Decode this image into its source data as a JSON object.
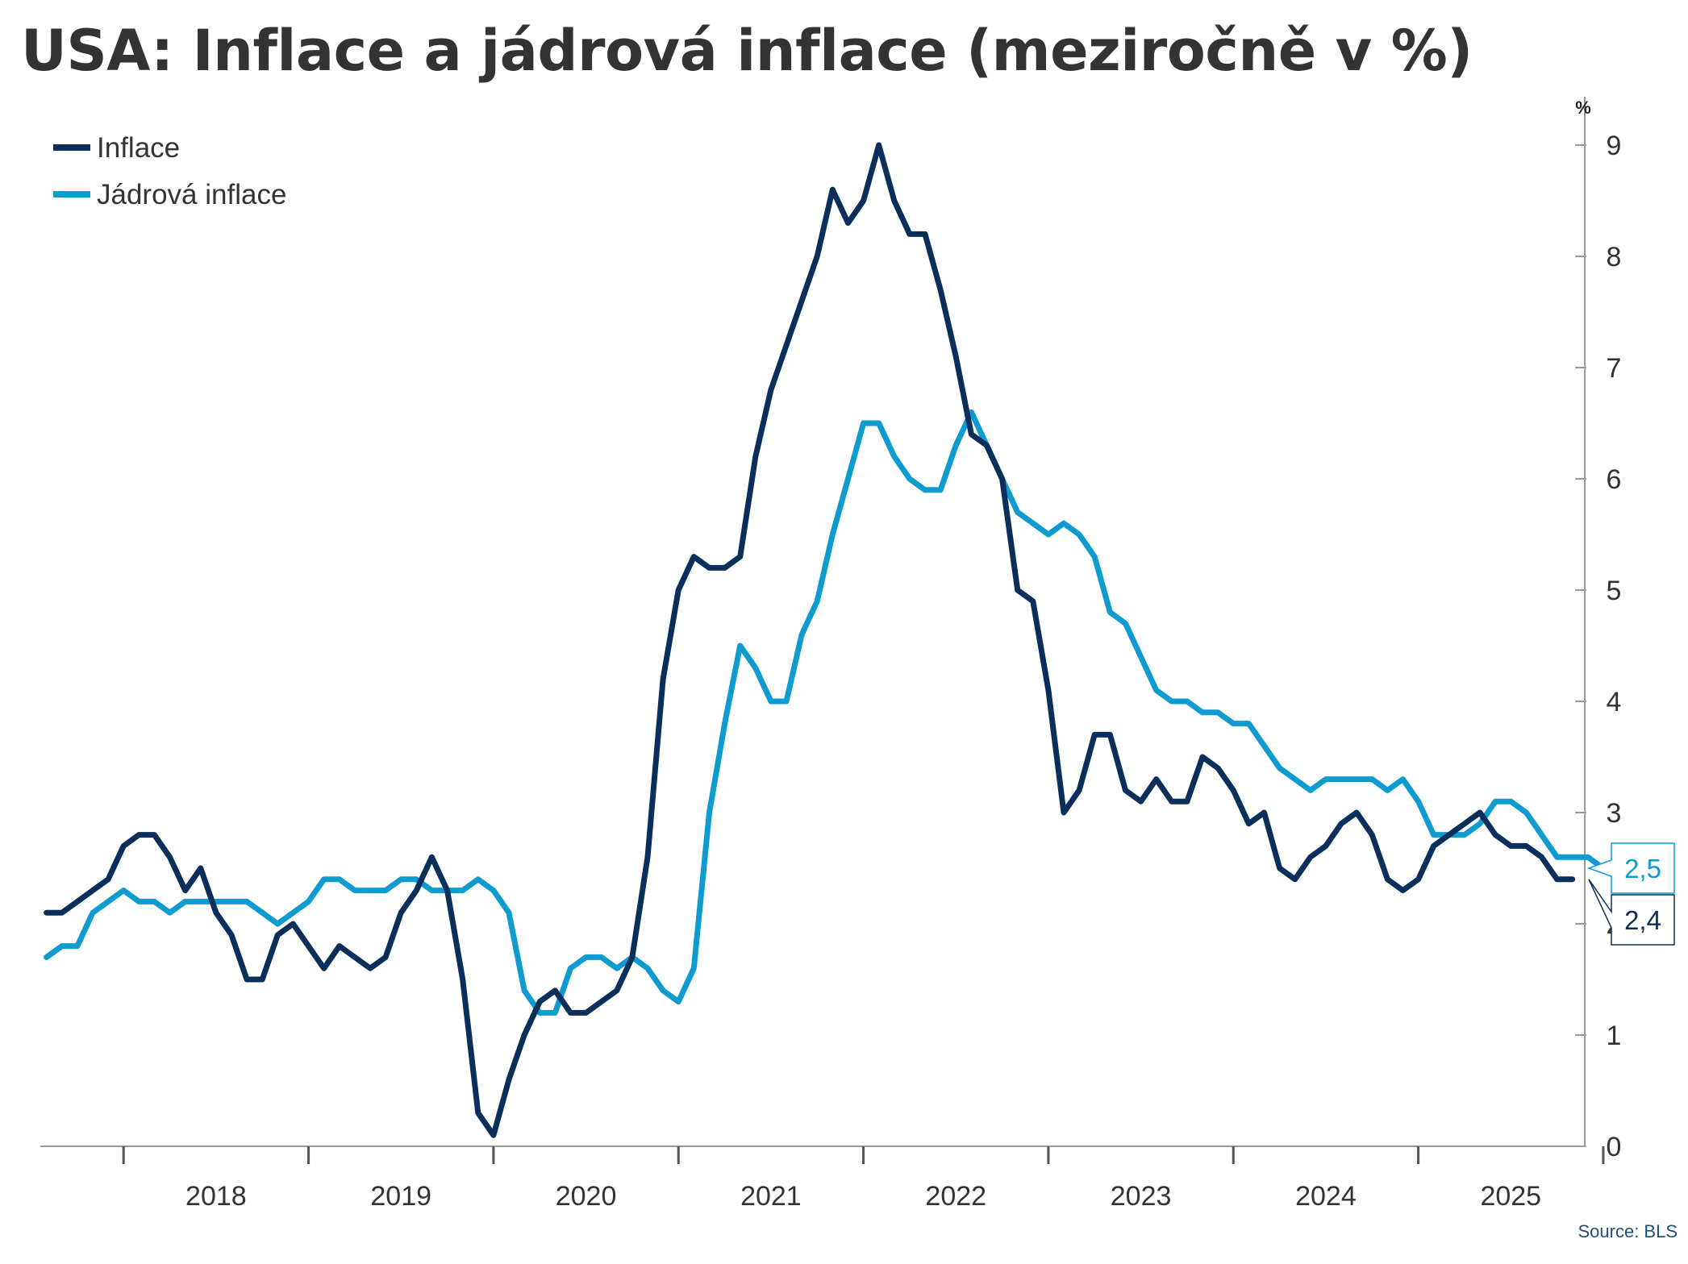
{
  "title": "USA: Inflace a jádrová inflace (meziročně v %)",
  "source": "Source: BLS",
  "chart_data": {
    "type": "line",
    "title": "USA: Inflace a jádrová inflace (meziročně v %)",
    "xlabel": "",
    "ylabel": "%",
    "xlim": [
      2017.55,
      2025.9
    ],
    "ylim": [
      0,
      9
    ],
    "yticks": [
      0,
      1,
      2,
      3,
      4,
      5,
      6,
      7,
      8,
      9
    ],
    "x_tick_labels": [
      "2018",
      "2019",
      "2020",
      "2021",
      "2022",
      "2023",
      "2024",
      "2025"
    ],
    "legend": {
      "placement": "top-left"
    },
    "grid": false,
    "series": [
      {
        "name": "Jádrová inflace",
        "color": "#0d9bd0",
        "end_label": "2,5",
        "start": "2017-08",
        "values": [
          1.7,
          1.8,
          1.8,
          2.1,
          2.2,
          2.3,
          2.2,
          2.2,
          2.1,
          2.2,
          2.2,
          2.2,
          2.2,
          2.2,
          2.1,
          2.0,
          2.1,
          2.2,
          2.4,
          2.4,
          2.3,
          2.3,
          2.3,
          2.4,
          2.4,
          2.3,
          2.3,
          2.3,
          2.4,
          2.3,
          2.1,
          1.4,
          1.2,
          1.2,
          1.6,
          1.7,
          1.7,
          1.6,
          1.7,
          1.6,
          1.4,
          1.3,
          1.6,
          3.0,
          3.8,
          4.5,
          4.3,
          4.0,
          4.0,
          4.6,
          4.9,
          5.5,
          6.0,
          6.5,
          6.5,
          6.2,
          6.0,
          5.9,
          5.9,
          6.3,
          6.6,
          6.3,
          6.0,
          5.7,
          5.6,
          5.5,
          5.6,
          5.5,
          5.3,
          4.8,
          4.7,
          4.4,
          4.1,
          4.0,
          4.0,
          3.9,
          3.9,
          3.8,
          3.8,
          3.6,
          3.4,
          3.3,
          3.2,
          3.3,
          3.3,
          3.3,
          3.3,
          3.2,
          3.3,
          3.1,
          2.8,
          2.8,
          2.8,
          2.9,
          3.1,
          3.1,
          3.0,
          2.8,
          2.6,
          2.6,
          2.6,
          2.5,
          2.5
        ]
      },
      {
        "name": "Inflace",
        "color": "#0b2f5b",
        "end_label": "2,4",
        "start": "2017-08",
        "values": [
          2.1,
          2.1,
          2.2,
          2.3,
          2.4,
          2.7,
          2.8,
          2.8,
          2.6,
          2.3,
          2.5,
          2.1,
          1.9,
          1.5,
          1.5,
          1.9,
          2.0,
          1.8,
          1.6,
          1.8,
          1.7,
          1.6,
          1.7,
          2.1,
          2.3,
          2.6,
          2.3,
          1.5,
          0.3,
          0.1,
          0.6,
          1.0,
          1.3,
          1.4,
          1.2,
          1.2,
          1.3,
          1.4,
          1.7,
          2.6,
          4.2,
          5.0,
          5.3,
          5.2,
          5.2,
          5.3,
          6.2,
          6.8,
          7.2,
          7.6,
          8.0,
          8.6,
          8.3,
          8.5,
          9.0,
          8.5,
          8.2,
          8.2,
          7.7,
          7.1,
          6.4,
          6.3,
          6.0,
          5.0,
          4.9,
          4.1,
          3.0,
          3.2,
          3.7,
          3.7,
          3.2,
          3.1,
          3.3,
          3.1,
          3.1,
          3.5,
          3.4,
          3.2,
          2.9,
          3.0,
          2.5,
          2.4,
          2.6,
          2.7,
          2.9,
          3.0,
          2.8,
          2.4,
          2.3,
          2.4,
          2.7,
          2.8,
          2.9,
          3.0,
          2.8,
          2.7,
          2.7,
          2.6,
          2.4,
          2.4
        ]
      }
    ]
  }
}
